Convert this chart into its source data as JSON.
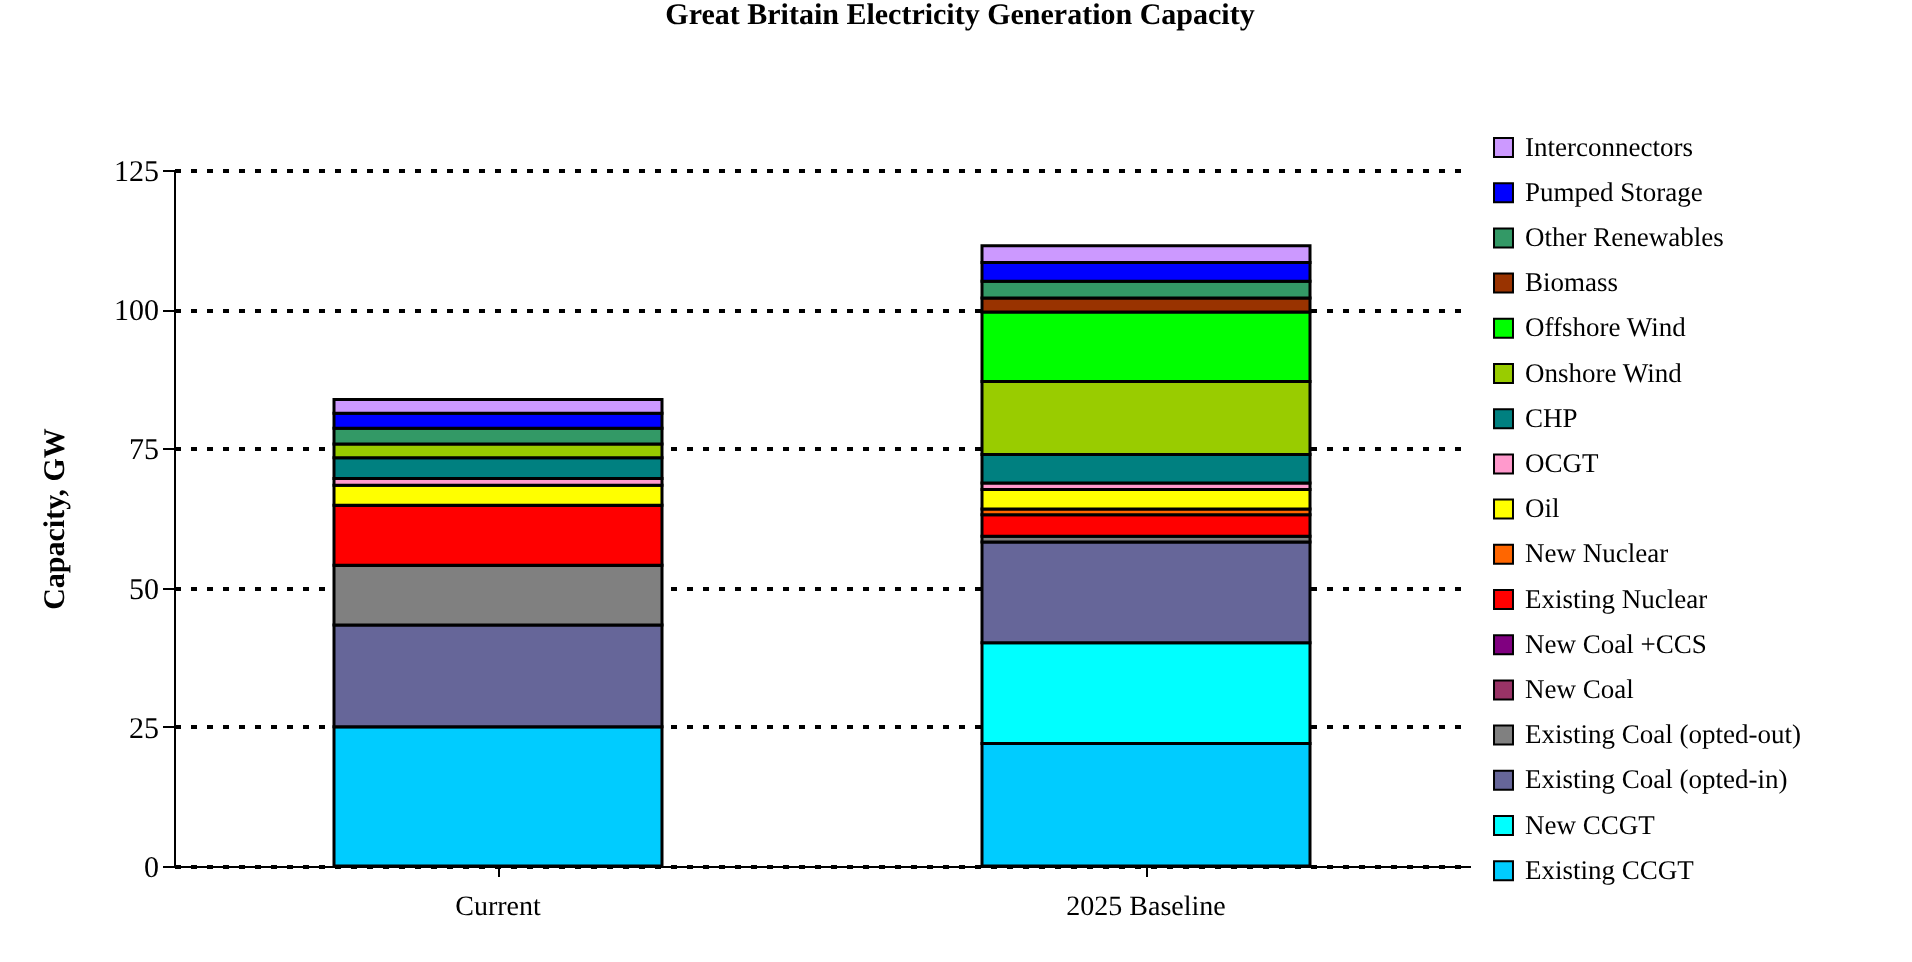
{
  "chart_data": {
    "type": "bar",
    "title": "Great Britain Electricity Generation Capacity",
    "ylabel": "Capacity, GW",
    "categories": [
      "Current",
      "2025 Baseline"
    ],
    "stacked": true,
    "ylim": [
      0,
      125
    ],
    "yticks": [
      0,
      25,
      50,
      75,
      100,
      125
    ],
    "grid": "y",
    "legend": "right",
    "series": [
      {
        "name": "Existing CCGT",
        "color": "#00ccff",
        "values": [
          25,
          22
        ]
      },
      {
        "name": "New CCGT",
        "color": "#00ffff",
        "values": [
          0,
          18.1
        ]
      },
      {
        "name": "Existing Coal (opted-in)",
        "color": "#666699",
        "values": [
          18.3,
          18.1
        ]
      },
      {
        "name": "Existing Coal (opted-out)",
        "color": "#808080",
        "values": [
          10.7,
          1.0
        ]
      },
      {
        "name": "New Coal",
        "color": "#993366",
        "values": [
          0,
          null
        ]
      },
      {
        "name": "New Coal +CCS",
        "color": "#800080",
        "values": [
          0,
          null
        ]
      },
      {
        "name": "Existing Nuclear",
        "color": "#ff0000",
        "values": [
          10.8,
          3.9
        ]
      },
      {
        "name": "New Nuclear",
        "color": "#ff6600",
        "values": [
          0,
          1.0
        ]
      },
      {
        "name": "Oil",
        "color": "#ffff00",
        "values": [
          3.6,
          3.5
        ]
      },
      {
        "name": "OCGT",
        "color": "#ff99cc",
        "values": [
          1.2,
          1.2
        ]
      },
      {
        "name": "CHP",
        "color": "#008080",
        "values": [
          3.7,
          5.1
        ]
      },
      {
        "name": "Onshore Wind",
        "color": "#99cc00",
        "values": [
          2.5,
          13.1
        ]
      },
      {
        "name": "Offshore Wind",
        "color": "#00ff00",
        "values": [
          null,
          12.5
        ]
      },
      {
        "name": "Biomass",
        "color": "#993300",
        "values": [
          null,
          2.5
        ]
      },
      {
        "name": "Other Renewables",
        "color": "#339966",
        "values": [
          2.8,
          3.0
        ]
      },
      {
        "name": "Pumped Storage",
        "color": "#0000ff",
        "values": [
          2.7,
          3.4
        ]
      },
      {
        "name": "Interconnectors",
        "color": "#cc99ff",
        "values": [
          2.5,
          3.0
        ]
      }
    ]
  }
}
